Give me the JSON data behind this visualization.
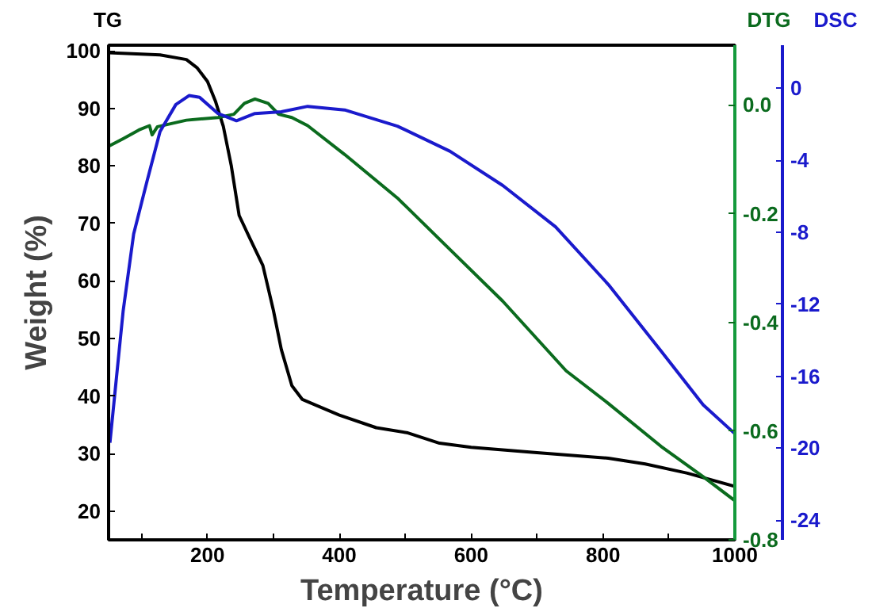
{
  "chart_data": {
    "type": "line",
    "xlabel": "Temperature (°C)",
    "ylabel": "Weight (%)",
    "xlim": [
      50,
      1000
    ],
    "ylim": [
      15,
      101
    ],
    "y2lim": [
      -0.8,
      0.11
    ],
    "y3lim": [
      -25.1,
      2.4
    ],
    "xticks": [
      {
        "value": 100,
        "label": null
      },
      200,
      {
        "value": 300,
        "label": null
      },
      400,
      {
        "value": 500,
        "label": null
      },
      600,
      {
        "value": 700,
        "label": null
      },
      800,
      {
        "value": 900,
        "label": null
      },
      1000
    ],
    "yticks": [
      20,
      30,
      40,
      50,
      60,
      70,
      80,
      90,
      100
    ],
    "y2ticks": [
      {
        "value": -0.8,
        "label": "-0.8"
      },
      {
        "value": -0.6,
        "label": "-0.6"
      },
      {
        "value": -0.4,
        "label": "-0.4"
      },
      {
        "value": -0.2,
        "label": "-0.2"
      },
      {
        "value": 0,
        "label": "0.0"
      }
    ],
    "y3ticks": [
      -24,
      -20,
      -16,
      -12,
      -8,
      -4,
      0
    ],
    "grid": false,
    "series": [
      {
        "name": "TG",
        "color": "#000000",
        "x": [
          50,
          128,
          168,
          184,
          200,
          212,
          224,
          236,
          248,
          264,
          284,
          300,
          312,
          328,
          344,
          400,
          456,
          504,
          552,
          600,
          696,
          808,
          864,
          928,
          1000
        ],
        "values": [
          99.7,
          99.3,
          98.5,
          97.1,
          94.7,
          91.3,
          86.9,
          80.1,
          71.4,
          67.5,
          62.7,
          54.9,
          48.1,
          41.8,
          39.4,
          36.7,
          34.5,
          33.6,
          31.8,
          31.1,
          30.2,
          29.2,
          28.2,
          26.6,
          24.3
        ]
      },
      {
        "name": "DTG",
        "color": "#0b6b1e",
        "axis": "y2",
        "x": [
          50,
          72,
          96,
          112,
          116,
          124,
          168,
          216,
          240,
          256,
          272,
          292,
          308,
          328,
          352,
          408,
          488,
          568,
          648,
          744,
          808,
          888,
          952,
          1000
        ],
        "values": [
          -0.076,
          -0.062,
          -0.046,
          -0.038,
          -0.055,
          -0.04,
          -0.028,
          -0.023,
          -0.017,
          0.003,
          0.011,
          0.003,
          -0.017,
          -0.023,
          -0.038,
          -0.091,
          -0.171,
          -0.266,
          -0.361,
          -0.489,
          -0.549,
          -0.628,
          -0.684,
          -0.728
        ]
      },
      {
        "name": "DSC",
        "color": "#1a1acc",
        "axis": "y3",
        "x": [
          52,
          72,
          88,
          108,
          128,
          152,
          172,
          188,
          216,
          244,
          272,
          312,
          352,
          408,
          488,
          568,
          648,
          728,
          808,
          888,
          952,
          1000
        ],
        "values": [
          -19.7,
          -12.4,
          -8.1,
          -5.2,
          -2.4,
          -0.9,
          -0.4,
          -0.5,
          -1.4,
          -1.8,
          -1.4,
          -1.3,
          -1.0,
          -1.2,
          -2.1,
          -3.5,
          -5.4,
          -7.7,
          -10.9,
          -14.6,
          -17.6,
          -19.2
        ]
      }
    ]
  }
}
